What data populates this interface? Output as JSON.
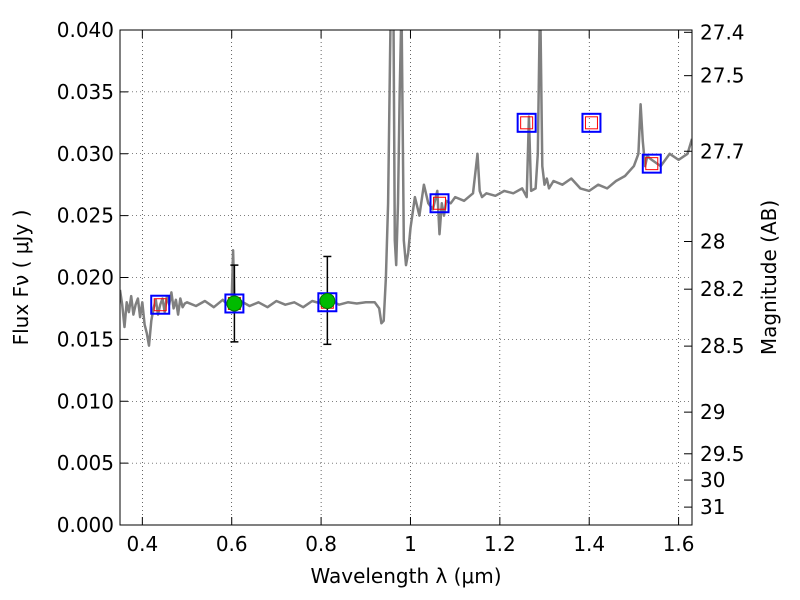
{
  "chart_data": {
    "type": "line",
    "xlabel": "Wavelength  λ (μm)",
    "ylabel": "Flux  Fν  ( μJy )",
    "ylabel_right": "Magnitude (AB)",
    "xlim": [
      0.35,
      1.63
    ],
    "ylim": [
      0.0,
      0.04
    ],
    "grid": true,
    "x_ticks": [
      {
        "v": 0.4,
        "label": "0.4"
      },
      {
        "v": 0.6,
        "label": "0.6"
      },
      {
        "v": 0.8,
        "label": "0.8"
      },
      {
        "v": 1.0,
        "label": "1"
      },
      {
        "v": 1.2,
        "label": "1.2"
      },
      {
        "v": 1.4,
        "label": "1.4"
      },
      {
        "v": 1.6,
        "label": "1.6"
      }
    ],
    "y_ticks": [
      {
        "v": 0.0,
        "label": "0.000"
      },
      {
        "v": 0.005,
        "label": "0.005"
      },
      {
        "v": 0.01,
        "label": "0.010"
      },
      {
        "v": 0.015,
        "label": "0.015"
      },
      {
        "v": 0.02,
        "label": "0.020"
      },
      {
        "v": 0.025,
        "label": "0.025"
      },
      {
        "v": 0.03,
        "label": "0.030"
      },
      {
        "v": 0.035,
        "label": "0.035"
      },
      {
        "v": 0.04,
        "label": "0.040"
      }
    ],
    "mag_ticks": [
      {
        "v": 27.4,
        "label": "27.4"
      },
      {
        "v": 27.5,
        "label": "27.5"
      },
      {
        "v": 27.7,
        "label": "27.7"
      },
      {
        "v": 28.0,
        "label": "28"
      },
      {
        "v": 28.2,
        "label": "28.2"
      },
      {
        "v": 28.5,
        "label": "28.5"
      },
      {
        "v": 29.0,
        "label": "29"
      },
      {
        "v": 29.5,
        "label": "29.5"
      },
      {
        "v": 30.0,
        "label": "30"
      },
      {
        "v": 31.0,
        "label": "31"
      }
    ],
    "template_spectrum": {
      "color": "#808080",
      "x": [
        0.35,
        0.355,
        0.36,
        0.365,
        0.37,
        0.375,
        0.38,
        0.385,
        0.39,
        0.395,
        0.4,
        0.405,
        0.41,
        0.415,
        0.42,
        0.425,
        0.43,
        0.435,
        0.44,
        0.445,
        0.45,
        0.455,
        0.46,
        0.465,
        0.47,
        0.475,
        0.48,
        0.485,
        0.49,
        0.495,
        0.5,
        0.52,
        0.54,
        0.56,
        0.58,
        0.59,
        0.6,
        0.603,
        0.606,
        0.61,
        0.62,
        0.64,
        0.66,
        0.68,
        0.7,
        0.72,
        0.74,
        0.76,
        0.78,
        0.8,
        0.82,
        0.84,
        0.86,
        0.88,
        0.9,
        0.92,
        0.93,
        0.935,
        0.94,
        0.945,
        0.95,
        0.955,
        0.96,
        0.962,
        0.965,
        0.968,
        0.972,
        0.976,
        0.98,
        0.985,
        0.99,
        0.995,
        1.0,
        1.01,
        1.02,
        1.03,
        1.04,
        1.05,
        1.06,
        1.065,
        1.07,
        1.075,
        1.08,
        1.09,
        1.1,
        1.12,
        1.14,
        1.15,
        1.155,
        1.16,
        1.17,
        1.19,
        1.21,
        1.23,
        1.25,
        1.26,
        1.265,
        1.27,
        1.28,
        1.285,
        1.29,
        1.295,
        1.3,
        1.305,
        1.31,
        1.32,
        1.34,
        1.36,
        1.38,
        1.4,
        1.42,
        1.44,
        1.46,
        1.48,
        1.5,
        1.51,
        1.515,
        1.52,
        1.525,
        1.53,
        1.54,
        1.56,
        1.58,
        1.6,
        1.62,
        1.63
      ],
      "y": [
        0.019,
        0.0178,
        0.016,
        0.018,
        0.0172,
        0.0185,
        0.017,
        0.0178,
        0.0183,
        0.0168,
        0.018,
        0.0162,
        0.0155,
        0.0145,
        0.0165,
        0.0175,
        0.0182,
        0.017,
        0.0178,
        0.0183,
        0.0172,
        0.0185,
        0.0178,
        0.0188,
        0.0175,
        0.0182,
        0.017,
        0.0183,
        0.0176,
        0.0179,
        0.018,
        0.0177,
        0.0181,
        0.0176,
        0.0182,
        0.0178,
        0.0182,
        0.0222,
        0.0183,
        0.0176,
        0.0181,
        0.0177,
        0.018,
        0.0176,
        0.0181,
        0.0178,
        0.018,
        0.0176,
        0.0181,
        0.0179,
        0.0182,
        0.0178,
        0.018,
        0.0179,
        0.018,
        0.018,
        0.0175,
        0.0163,
        0.0165,
        0.02,
        0.026,
        0.04,
        0.043,
        0.041,
        0.023,
        0.021,
        0.026,
        0.035,
        0.042,
        0.023,
        0.021,
        0.022,
        0.024,
        0.0265,
        0.025,
        0.0275,
        0.026,
        0.0255,
        0.027,
        0.0235,
        0.026,
        0.025,
        0.0262,
        0.026,
        0.0265,
        0.0262,
        0.0268,
        0.03,
        0.027,
        0.0265,
        0.0268,
        0.0266,
        0.027,
        0.0268,
        0.0272,
        0.0265,
        0.033,
        0.027,
        0.0272,
        0.03,
        0.043,
        0.029,
        0.0275,
        0.028,
        0.0272,
        0.0278,
        0.0275,
        0.028,
        0.0272,
        0.027,
        0.0275,
        0.0272,
        0.0278,
        0.0282,
        0.029,
        0.03,
        0.034,
        0.031,
        0.029,
        0.0298,
        0.0295,
        0.029,
        0.03,
        0.0295,
        0.03,
        0.0312
      ]
    },
    "model_points": {
      "marker": "open-square",
      "color": "#0000ff",
      "inner_color": "#ff0000",
      "points": [
        {
          "x": 0.44,
          "y": 0.0178
        },
        {
          "x": 0.606,
          "y": 0.0179
        },
        {
          "x": 0.814,
          "y": 0.018
        },
        {
          "x": 1.065,
          "y": 0.026
        },
        {
          "x": 1.26,
          "y": 0.0325
        },
        {
          "x": 1.405,
          "y": 0.0325
        },
        {
          "x": 1.54,
          "y": 0.0292
        }
      ]
    },
    "observed_points": {
      "marker": "filled-circle",
      "color": "#00bb00",
      "points": [
        {
          "x": 0.606,
          "y": 0.0179,
          "ylow": 0.0148,
          "yhigh": 0.021
        },
        {
          "x": 0.814,
          "y": 0.0181,
          "ylow": 0.0146,
          "yhigh": 0.0217
        }
      ]
    }
  }
}
